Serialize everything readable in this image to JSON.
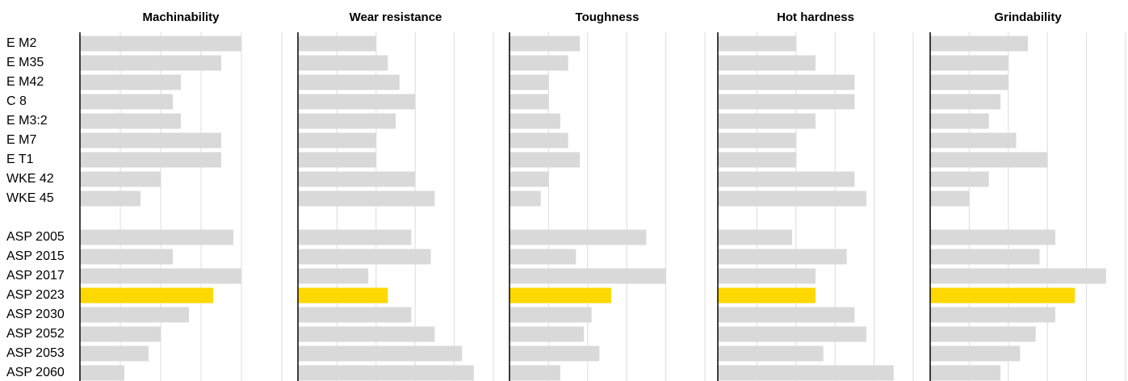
{
  "chart_data": {
    "type": "bar",
    "orientation": "horizontal",
    "categories": [
      "E M2",
      "E M35",
      "E M42",
      "C 8",
      "E M3:2",
      "E M7",
      "E T1",
      "WKE 42",
      "WKE 45",
      null,
      "ASP 2005",
      "ASP 2015",
      "ASP 2017",
      "ASP 2023",
      "ASP 2030",
      "ASP 2052",
      "ASP 2053",
      "ASP 2060"
    ],
    "category_colors": [
      "#d9d9d9",
      "#d9d9d9",
      "#d9d9d9",
      "#d9d9d9",
      "#d9d9d9",
      "#d9d9d9",
      "#d9d9d9",
      "#d9d9d9",
      "#d9d9d9",
      null,
      "#d9d9d9",
      "#d9d9d9",
      "#d9d9d9",
      "#ffd800",
      "#d9d9d9",
      "#d9d9d9",
      "#d9d9d9",
      "#d9d9d9"
    ],
    "xlim": [
      0,
      5
    ],
    "xticks": [
      0,
      1,
      2,
      3,
      4,
      5
    ],
    "grid": true,
    "series": [
      {
        "name": "Machinability",
        "values": [
          4,
          3.5,
          2.5,
          2.3,
          2.5,
          3.5,
          3.5,
          2,
          1.5,
          null,
          3.8,
          2.3,
          4,
          3.3,
          2.7,
          2,
          1.7,
          1.1
        ]
      },
      {
        "name": "Wear resistance",
        "values": [
          2,
          2.3,
          2.6,
          3,
          2.5,
          2,
          2,
          3,
          3.5,
          null,
          2.9,
          3.4,
          1.8,
          2.3,
          2.9,
          3.5,
          4.2,
          4.5
        ]
      },
      {
        "name": "Toughness",
        "values": [
          1.8,
          1.5,
          1,
          1,
          1.3,
          1.5,
          1.8,
          1,
          0.8,
          null,
          3.5,
          1.7,
          4,
          2.6,
          2.1,
          1.9,
          2.3,
          1.3
        ]
      },
      {
        "name": "Hot hardness",
        "values": [
          2,
          2.5,
          3.5,
          3.5,
          2.5,
          2,
          2,
          3.5,
          3.8,
          null,
          1.9,
          3.3,
          2.5,
          2.5,
          3.5,
          3.8,
          2.7,
          4.5
        ]
      },
      {
        "name": "Grindability",
        "values": [
          2.5,
          2,
          2,
          1.8,
          1.5,
          2.2,
          3,
          1.5,
          1,
          null,
          3.2,
          2.8,
          4.5,
          3.7,
          3.2,
          2.7,
          2.3,
          1.8
        ]
      }
    ]
  }
}
